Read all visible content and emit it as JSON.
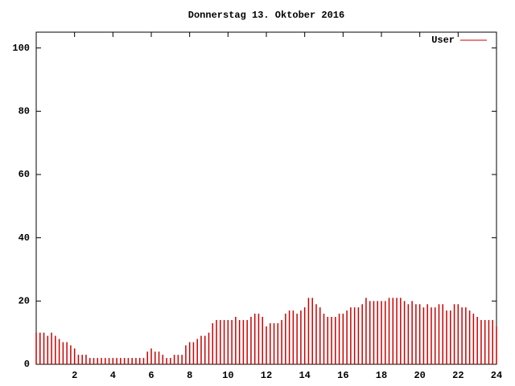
{
  "chart_data": {
    "type": "impulse",
    "title": "Donnerstag 13. Oktober 2016",
    "x": [
      0,
      0.2,
      0.4,
      0.6,
      0.8,
      1.0,
      1.2,
      1.4,
      1.6,
      1.8,
      2.0,
      2.2,
      2.4,
      2.6,
      2.8,
      3.0,
      3.2,
      3.4,
      3.6,
      3.8,
      4.0,
      4.2,
      4.4,
      4.6,
      4.8,
      5.0,
      5.2,
      5.4,
      5.6,
      5.8,
      6.0,
      6.2,
      6.4,
      6.6,
      6.8,
      7.0,
      7.2,
      7.4,
      7.6,
      7.8,
      8.0,
      8.2,
      8.4,
      8.6,
      8.8,
      9.0,
      9.2,
      9.4,
      9.6,
      9.8,
      10.0,
      10.2,
      10.4,
      10.6,
      10.8,
      11.0,
      11.2,
      11.4,
      11.6,
      11.8,
      12.0,
      12.2,
      12.4,
      12.6,
      12.8,
      13.0,
      13.2,
      13.4,
      13.6,
      13.8,
      14.0,
      14.2,
      14.4,
      14.6,
      14.8,
      15.0,
      15.2,
      15.4,
      15.6,
      15.8,
      16.0,
      16.2,
      16.4,
      16.6,
      16.8,
      17.0,
      17.2,
      17.4,
      17.6,
      17.8,
      18.0,
      18.2,
      18.4,
      18.6,
      18.8,
      19.0,
      19.2,
      19.4,
      19.6,
      19.8,
      20.0,
      20.2,
      20.4,
      20.6,
      20.8,
      21.0,
      21.2,
      21.4,
      21.6,
      21.8,
      22.0,
      22.2,
      22.4,
      22.6,
      22.8,
      23.0,
      23.2,
      23.4,
      23.6,
      23.8,
      24.0
    ],
    "series": [
      {
        "name": "User",
        "color": "#cc0000",
        "values": [
          10,
          10,
          10,
          9,
          10,
          9,
          8,
          7,
          7,
          6,
          5,
          3,
          3,
          3,
          2,
          2,
          2,
          2,
          2,
          2,
          2,
          2,
          2,
          2,
          2,
          2,
          2,
          2,
          2,
          4,
          5,
          4,
          4,
          3,
          2,
          2,
          3,
          3,
          3,
          6,
          7,
          7,
          8,
          9,
          9,
          10,
          13,
          14,
          14,
          14,
          14,
          14,
          15,
          14,
          14,
          14,
          15,
          16,
          16,
          15,
          12,
          13,
          13,
          13,
          14,
          16,
          17,
          17,
          16,
          17,
          18,
          21,
          21,
          19,
          18,
          16,
          15,
          15,
          15,
          16,
          16,
          17,
          18,
          18,
          18,
          19,
          21,
          20,
          20,
          20,
          20,
          20,
          21,
          21,
          21,
          21,
          20,
          19,
          20,
          19,
          19,
          18,
          19,
          18,
          18,
          19,
          19,
          17,
          17,
          19,
          19,
          18,
          18,
          17,
          16,
          15,
          14,
          14,
          14,
          14,
          12
        ]
      }
    ],
    "xlim": [
      0,
      24
    ],
    "xticks": [
      2,
      4,
      6,
      8,
      10,
      12,
      14,
      16,
      18,
      20,
      22,
      24
    ],
    "ylim": [
      0,
      105
    ],
    "yticks": [
      0,
      20,
      40,
      60,
      80,
      100
    ],
    "legend": "top-right"
  }
}
